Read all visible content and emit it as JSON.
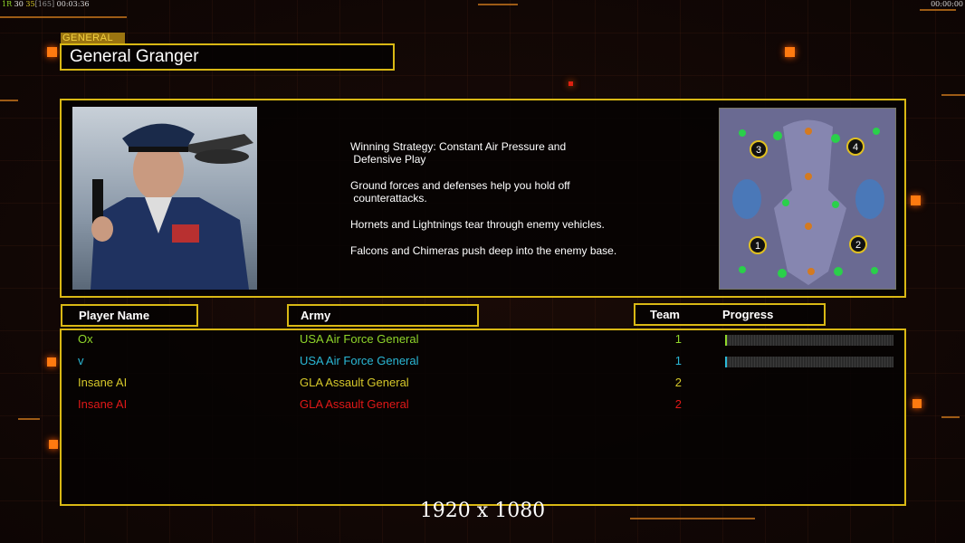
{
  "hud": {
    "left_status": [
      "1R",
      "30",
      "35",
      "[165]",
      "00:03:36"
    ],
    "right_clock": "00:00:00"
  },
  "general": {
    "label": "GENERAL",
    "name": "General Granger"
  },
  "strategy": [
    "Winning Strategy: Constant Air Pressure and\n Defensive Play",
    "Ground forces and defenses help you hold off\n counterattacks.",
    "Hornets and Lightnings tear through enemy vehicles.",
    "Falcons and Chimeras push deep into the enemy base."
  ],
  "minimap": {
    "start_positions": [
      "3",
      "4",
      "1",
      "2"
    ]
  },
  "headers": {
    "player": "Player Name",
    "army": "Army",
    "team": "Team",
    "progress": "Progress"
  },
  "players": [
    {
      "name": "Ox",
      "army": "USA Air Force General",
      "team": "1",
      "color": "#8fd62a",
      "progress": 0.01
    },
    {
      "name": "v",
      "army": "USA Air Force General",
      "team": "1",
      "color": "#2ab8d6",
      "progress": 0.01
    },
    {
      "name": "Insane AI",
      "army": "GLA Assault General",
      "team": "2",
      "color": "#d6c82a"
    },
    {
      "name": "Insane AI",
      "army": "GLA Assault General",
      "team": "2",
      "color": "#e01818"
    }
  ],
  "footer": "1920 x 1080",
  "colors": {
    "frame": "#d9b814",
    "accent": "#ff7a10"
  }
}
